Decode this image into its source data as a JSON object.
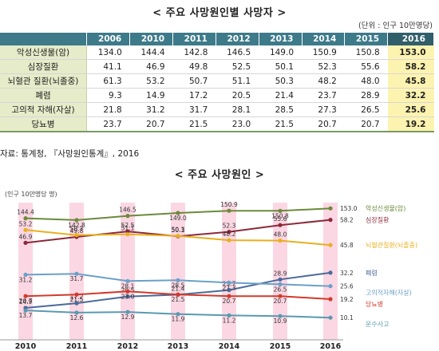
{
  "page": {
    "table_title": "< 주요 사망원인별 사망자 >",
    "unit": "(단위 : 인구 10만명당)",
    "source": "자료: 통계청, 『사망원인통계』, 2016",
    "chart_title": "< 주요 사망원인 >"
  },
  "table": {
    "headers": [
      "2006",
      "2010",
      "2011",
      "2012",
      "2013",
      "2014",
      "2015",
      "2016"
    ],
    "rows": [
      {
        "label": "악성신생물(암)",
        "values": [
          "134.0",
          "144.4",
          "142.8",
          "146.5",
          "149.0",
          "150.9",
          "150.8",
          "153.0"
        ]
      },
      {
        "label": "심장질환",
        "values": [
          "41.1",
          "46.9",
          "49.8",
          "52.5",
          "50.1",
          "52.3",
          "55.6",
          "58.2"
        ]
      },
      {
        "label": "뇌혈관 질환(뇌졸중)",
        "values": [
          "61.3",
          "53.2",
          "50.7",
          "51.1",
          "50.3",
          "48.2",
          "48.0",
          "45.8"
        ]
      },
      {
        "label": "폐렴",
        "values": [
          "9.3",
          "14.9",
          "17.2",
          "20.5",
          "21.4",
          "23.7",
          "28.9",
          "32.2"
        ]
      },
      {
        "label": "고의적 자해(자살)",
        "values": [
          "21.8",
          "31.2",
          "31.7",
          "28.1",
          "28.5",
          "27.3",
          "26.5",
          "25.6"
        ]
      },
      {
        "label": "당뇨병",
        "values": [
          "23.7",
          "20.7",
          "21.5",
          "23.0",
          "21.5",
          "20.7",
          "20.7",
          "19.2"
        ]
      }
    ]
  },
  "chart_data": {
    "type": "line",
    "title": "< 주요 사망원인 >",
    "ylabel": "(인구 10만명당 명)",
    "categories": [
      "2010",
      "2011",
      "2012",
      "2013",
      "2014",
      "2015",
      "2016"
    ],
    "series": [
      {
        "name": "악성신생물(암)",
        "color": "#6b8a3a",
        "values": [
          144.4,
          142.8,
          146.5,
          149.0,
          150.9,
          150.8,
          153.0
        ]
      },
      {
        "name": "심장질환",
        "color": "#8b2a3a",
        "values": [
          46.9,
          49.8,
          52.5,
          50.1,
          52.3,
          55.6,
          58.2
        ]
      },
      {
        "name": "뇌혈관질환(뇌졸중)",
        "color": "#e8b020",
        "values": [
          53.2,
          50.7,
          51.1,
          50.3,
          48.2,
          48.0,
          45.8
        ]
      },
      {
        "name": "폐렴",
        "color": "#4a6a9a",
        "values": [
          14.9,
          17.2,
          20.5,
          21.4,
          23.7,
          28.9,
          32.2
        ]
      },
      {
        "name": "고의적자해(자살)",
        "color": "#6aa0c8",
        "values": [
          31.2,
          31.7,
          28.1,
          28.5,
          27.3,
          26.5,
          25.6
        ]
      },
      {
        "name": "당뇨병",
        "color": "#d23a2a",
        "values": [
          20.7,
          21.5,
          23.0,
          21.5,
          20.7,
          20.7,
          19.2
        ]
      },
      {
        "name": "운수사고",
        "color": "#5a9ab0",
        "values": [
          13.7,
          12.6,
          12.9,
          11.9,
          11.2,
          10.9,
          10.1
        ]
      }
    ]
  }
}
